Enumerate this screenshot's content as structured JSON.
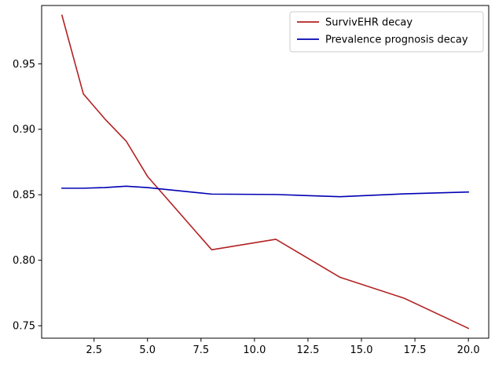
{
  "chart_data": {
    "type": "line",
    "title": "",
    "xlabel": "",
    "ylabel": "",
    "xlim": [
      0.05,
      20.95
    ],
    "ylim": [
      0.7405,
      0.9945
    ],
    "x_ticks": [
      2.5,
      5.0,
      7.5,
      10.0,
      12.5,
      15.0,
      17.5,
      20.0
    ],
    "x_tick_labels": [
      "2.5",
      "5.0",
      "7.5",
      "10.0",
      "12.5",
      "15.0",
      "17.5",
      "20.0"
    ],
    "y_ticks": [
      0.75,
      0.8,
      0.85,
      0.9,
      0.95
    ],
    "y_tick_labels": [
      "0.75",
      "0.80",
      "0.85",
      "0.90",
      "0.95"
    ],
    "grid": false,
    "legend_position": "top-right",
    "series": [
      {
        "name": "SurvivEHR decay",
        "color": "#b22222",
        "x": [
          1,
          2,
          3,
          4,
          5,
          8,
          11,
          14,
          17,
          20
        ],
        "y": [
          0.987,
          0.927,
          0.908,
          0.891,
          0.864,
          0.808,
          0.816,
          0.787,
          0.771,
          0.748
        ]
      },
      {
        "name": "Prevalence prognosis decay",
        "color": "#0000b3",
        "x": [
          1,
          2,
          3,
          4,
          5,
          8,
          11,
          14,
          17,
          20
        ],
        "y": [
          0.855,
          0.855,
          0.8555,
          0.8565,
          0.8555,
          0.8505,
          0.8502,
          0.8485,
          0.8507,
          0.8521
        ]
      }
    ]
  }
}
